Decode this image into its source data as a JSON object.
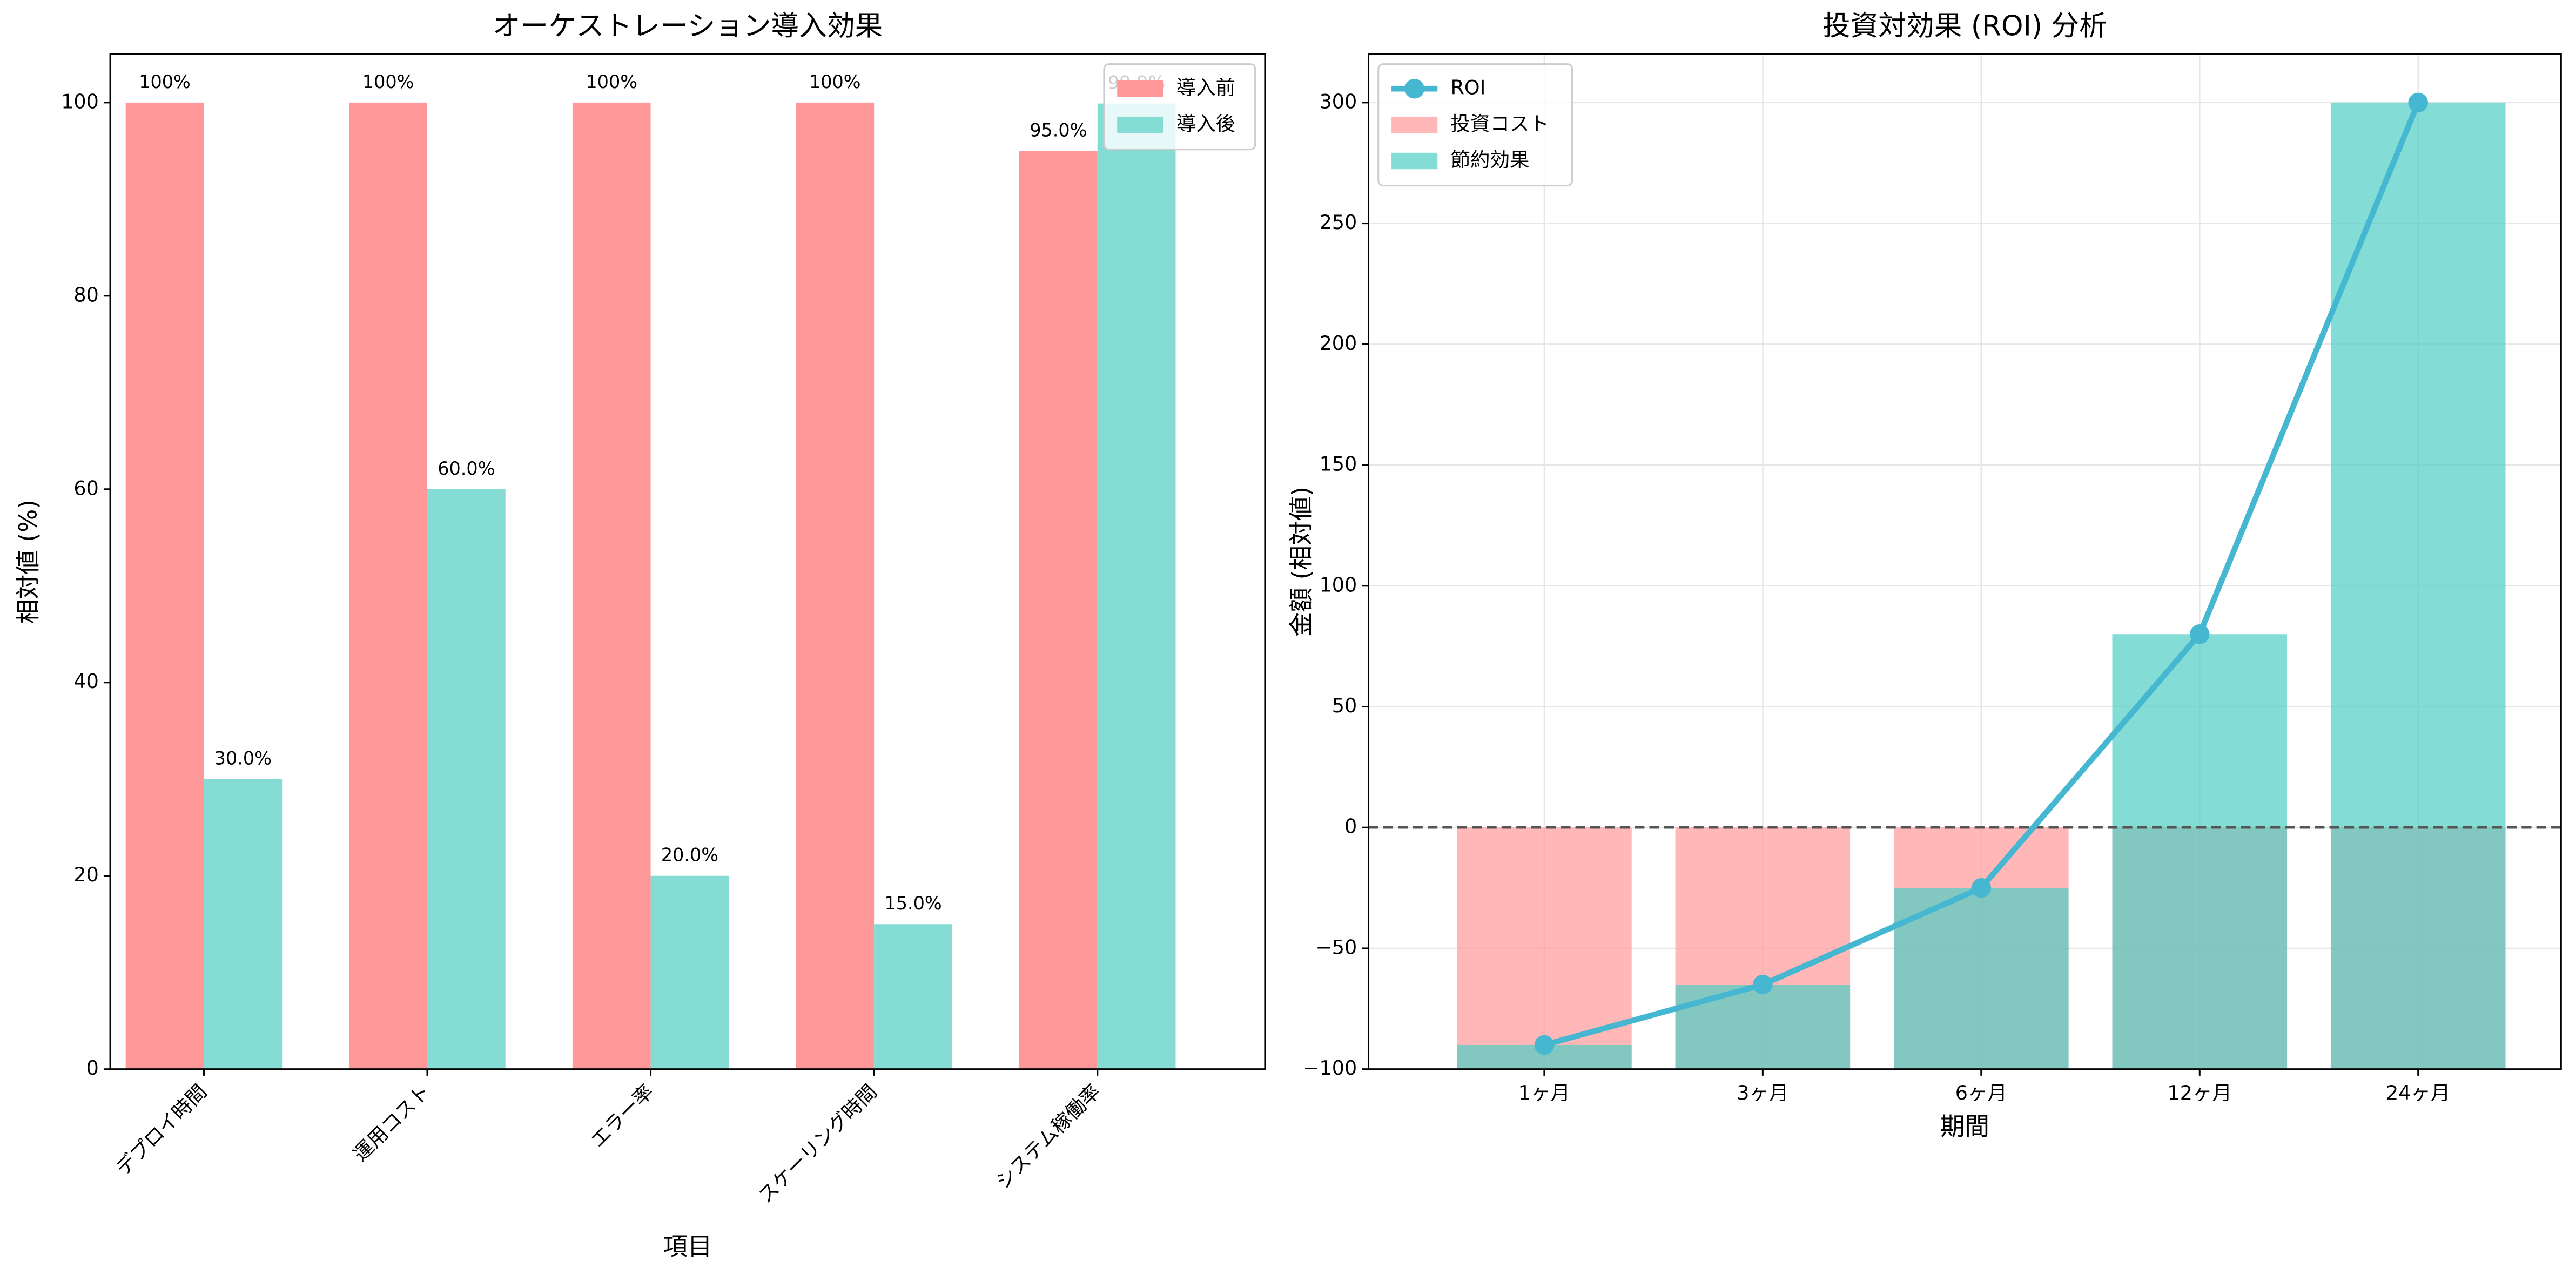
{
  "chart_data": [
    {
      "type": "bar",
      "title": "オーケストレーション導入効果",
      "x_label": "項目",
      "y_label": "相対値 (%)",
      "categories": [
        "デプロイ時間",
        "運用コスト",
        "エラー率",
        "スケーリング時間",
        "システム稼働率"
      ],
      "series": [
        {
          "name": "導入前",
          "color": "#ff9999",
          "values": [
            100,
            100,
            100,
            100,
            95
          ],
          "value_labels": [
            "100%",
            "100%",
            "100%",
            "100%",
            "95.0%"
          ]
        },
        {
          "name": "導入後",
          "color": "#84dcd5",
          "values": [
            30,
            60,
            20,
            15,
            99.9
          ],
          "value_labels": [
            "30.0%",
            "60.0%",
            "20.0%",
            "15.0%",
            "99.9%"
          ]
        }
      ],
      "ylim": [
        0,
        105
      ],
      "yticks": [
        0,
        20,
        40,
        60,
        80,
        100
      ],
      "grid": false,
      "legend": "upper right"
    },
    {
      "type": "combo",
      "title": "投資対効果 (ROI) 分析",
      "x_label": "期間",
      "y_label": "金額 (相対値)",
      "categories": [
        "1ヶ月",
        "3ヶ月",
        "6ヶ月",
        "12ヶ月",
        "24ヶ月"
      ],
      "series": [
        {
          "name": "ROI",
          "color": "#45b7d1",
          "kind": "line",
          "values": [
            -90,
            -65,
            -25,
            80,
            300
          ]
        },
        {
          "name": "投資コスト",
          "color": "#ff9999",
          "kind": "bar",
          "values": [
            -100,
            -100,
            -100,
            -100,
            -100
          ]
        },
        {
          "name": "節約効果",
          "color": "#4ecdc4",
          "kind": "bar",
          "values": [
            -90,
            -65,
            -25,
            80,
            300
          ]
        }
      ],
      "ylim": [
        -100,
        320
      ],
      "yticks": [
        {
          "value": -100,
          "label": "−100"
        },
        {
          "value": -50,
          "label": "−50"
        },
        0,
        50,
        100,
        150,
        200,
        250,
        300
      ],
      "grid": true,
      "legend": "upper left"
    }
  ]
}
